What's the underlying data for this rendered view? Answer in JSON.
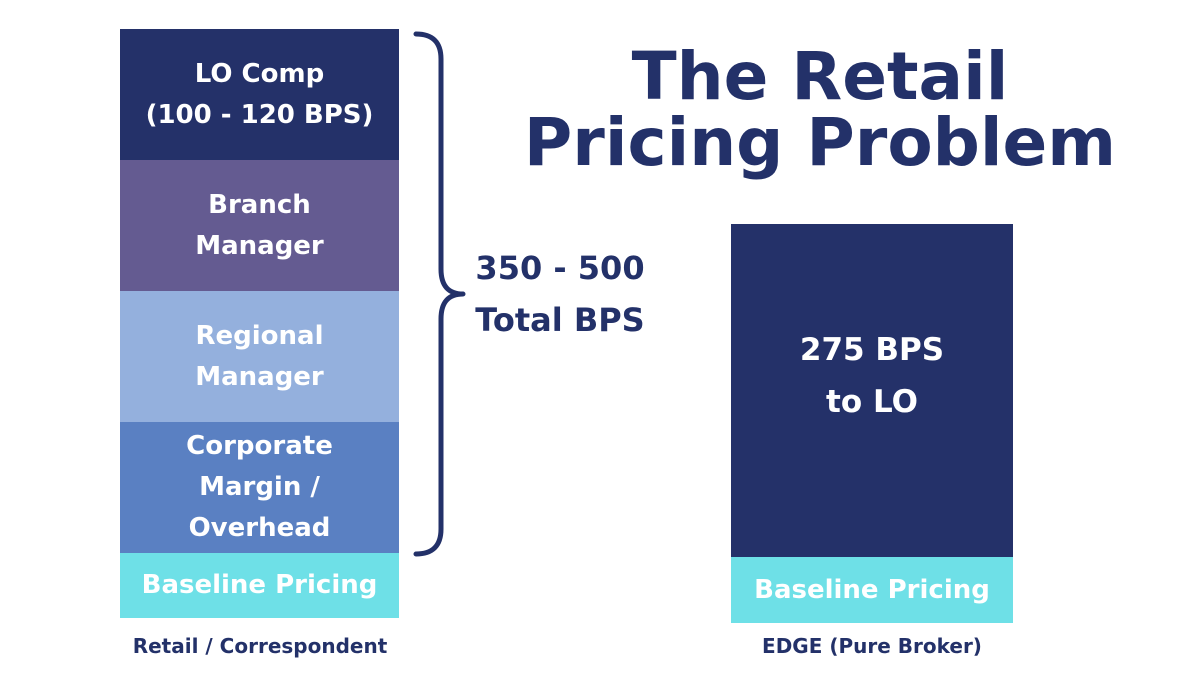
{
  "title": {
    "line1": "The Retail",
    "line2": "Pricing Problem"
  },
  "retail_stack": {
    "caption": "Retail / Correspondent",
    "segments": [
      {
        "lines": [
          "LO Comp",
          "(100 - 120 BPS)"
        ],
        "color": "#243169"
      },
      {
        "lines": [
          "Branch",
          "Manager"
        ],
        "color": "#645b91"
      },
      {
        "lines": [
          "Regional",
          "Manager"
        ],
        "color": "#94b0dd"
      },
      {
        "lines": [
          "Corporate",
          "Margin /",
          "Overhead"
        ],
        "color": "#5a80c2"
      },
      {
        "lines": [
          "Baseline Pricing"
        ],
        "color": "#6ee0e7"
      }
    ]
  },
  "total": {
    "line1": "350 - 500",
    "line2": "Total BPS"
  },
  "edge_stack": {
    "caption": "EDGE (Pure Broker)",
    "main": {
      "line1": "275 BPS",
      "line2": "to LO",
      "color": "#243169"
    },
    "baseline": {
      "label": "Baseline Pricing",
      "color": "#6ee0e7"
    }
  }
}
